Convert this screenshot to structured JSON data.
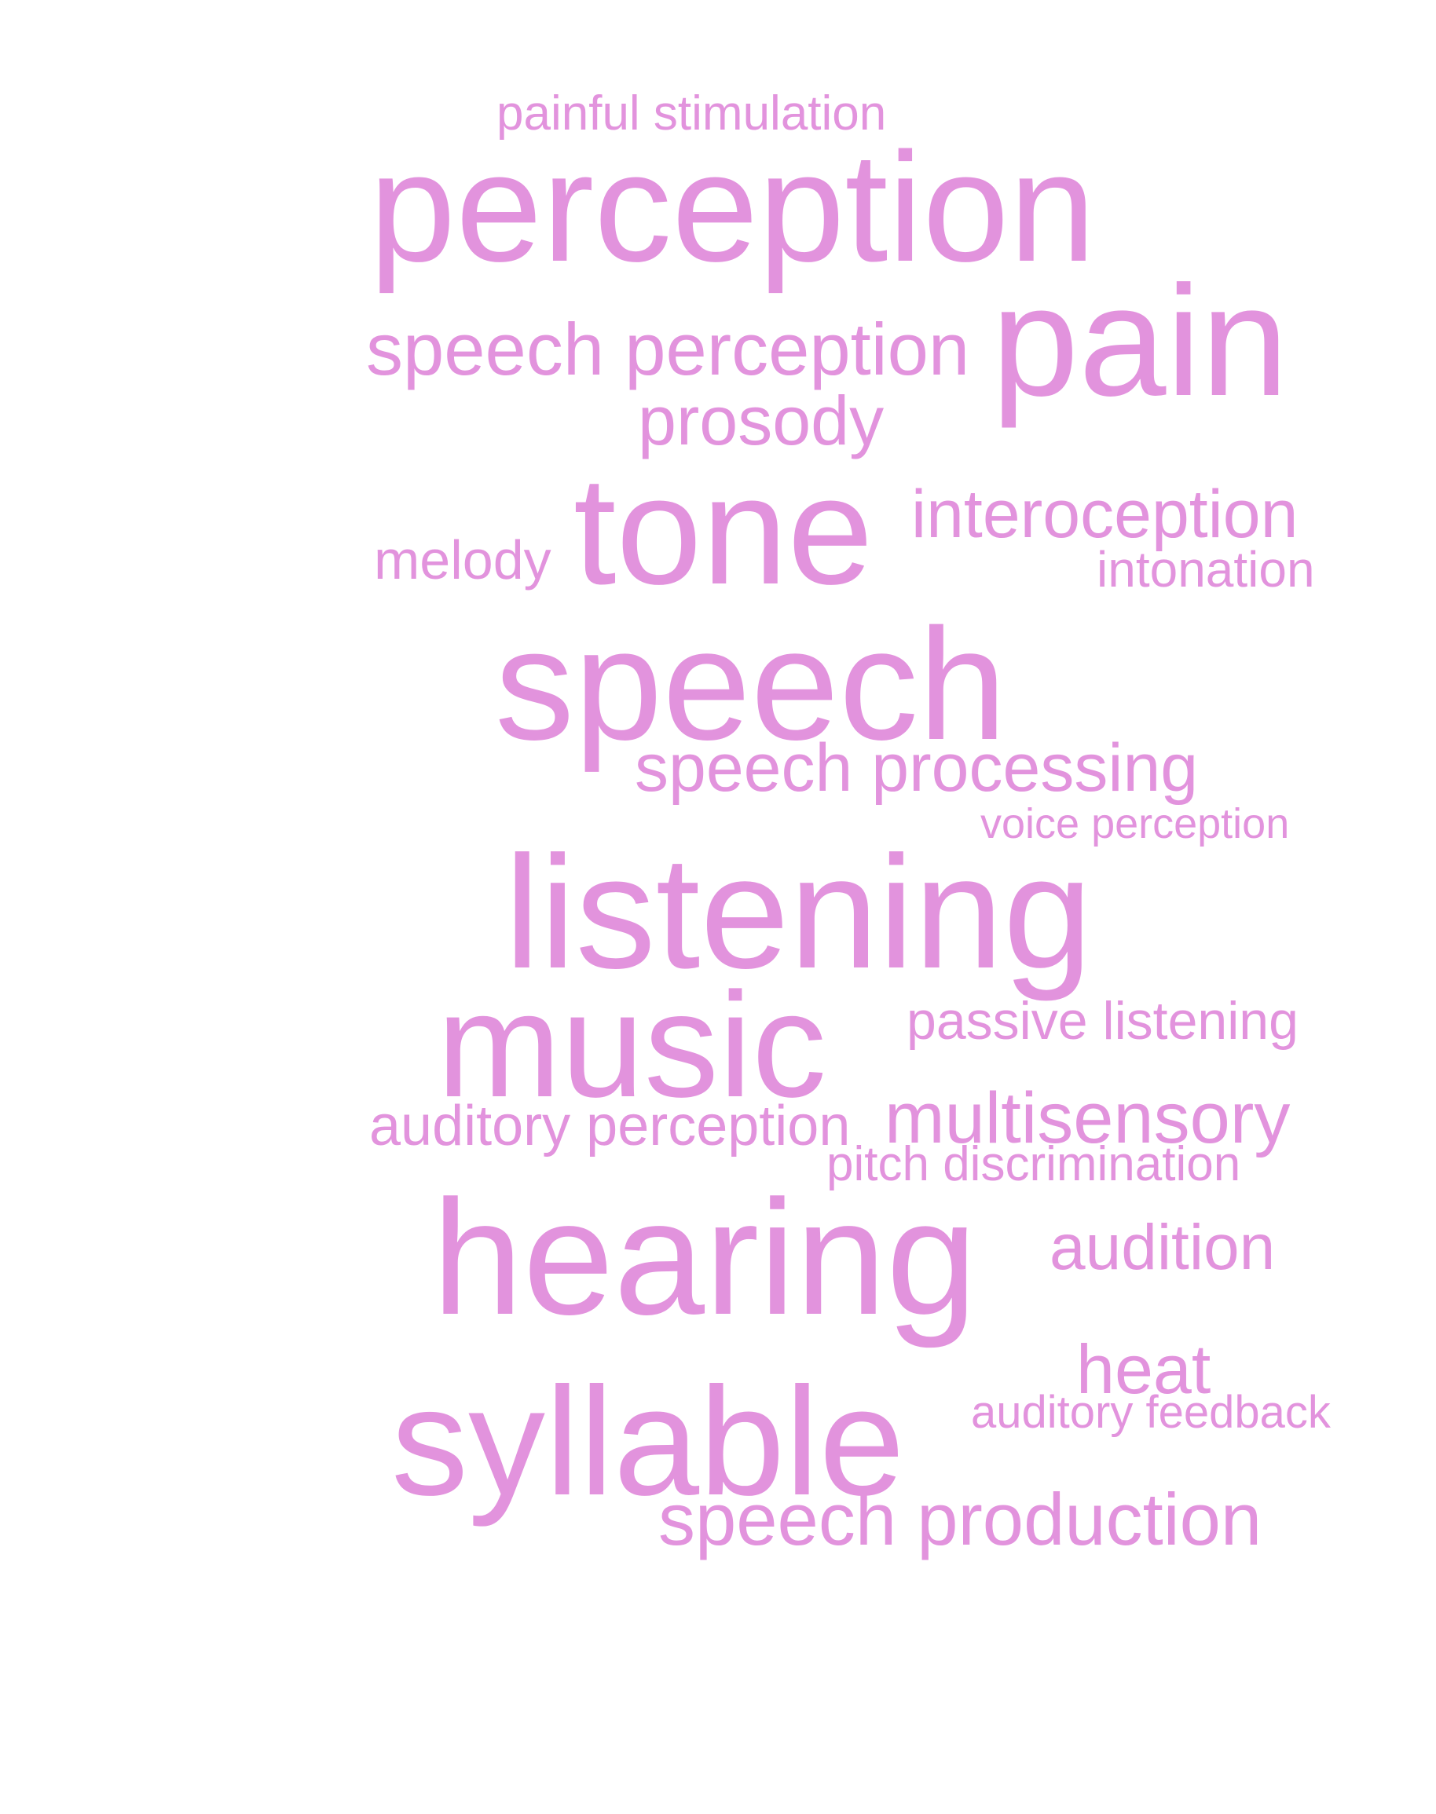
{
  "word_cloud": {
    "color": "#e293dd",
    "words": [
      {
        "text": "painful stimulation"
      },
      {
        "text": "perception"
      },
      {
        "text": "speech perception"
      },
      {
        "text": "pain"
      },
      {
        "text": "prosody"
      },
      {
        "text": "tone"
      },
      {
        "text": "interoception"
      },
      {
        "text": "melody"
      },
      {
        "text": "intonation"
      },
      {
        "text": "speech"
      },
      {
        "text": "speech processing"
      },
      {
        "text": "voice perception"
      },
      {
        "text": "listening"
      },
      {
        "text": "music"
      },
      {
        "text": "passive listening"
      },
      {
        "text": "auditory perception"
      },
      {
        "text": "multisensory"
      },
      {
        "text": "pitch discrimination"
      },
      {
        "text": "hearing"
      },
      {
        "text": "audition"
      },
      {
        "text": "heat"
      },
      {
        "text": "syllable"
      },
      {
        "text": "auditory feedback"
      },
      {
        "text": "speech production"
      }
    ]
  }
}
